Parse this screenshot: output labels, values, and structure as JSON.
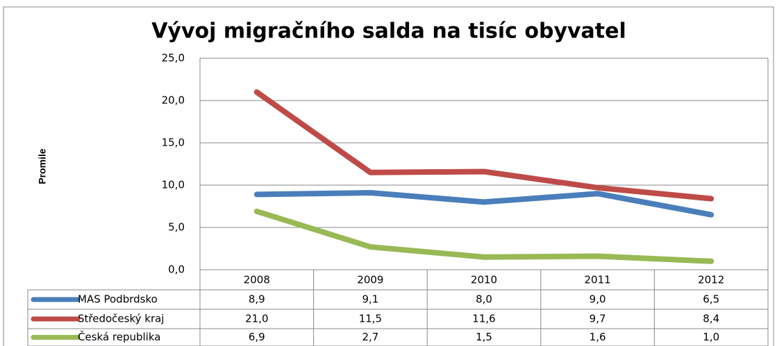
{
  "chart_data": {
    "type": "line",
    "title": "Vývoj migračního salda na tisíc obyvatel",
    "y_label": "Promile",
    "categories": [
      "2008",
      "2009",
      "2010",
      "2011",
      "2012"
    ],
    "series": [
      {
        "name": "MAS Podbrdsko",
        "color": "#4a7ebb",
        "values": [
          8.9,
          9.1,
          8.0,
          9.0,
          6.5
        ],
        "value_labels": [
          "8,9",
          "9,1",
          "8,0",
          "9,0",
          "6,5"
        ]
      },
      {
        "name": "Středočeský kraj",
        "color": "#be4b48",
        "values": [
          21.0,
          11.5,
          11.6,
          9.7,
          8.4
        ],
        "value_labels": [
          "21,0",
          "11,5",
          "11,6",
          "9,7",
          "8,4"
        ]
      },
      {
        "name": "Česká republika",
        "color": "#98b954",
        "values": [
          6.9,
          2.7,
          1.5,
          1.6,
          1.0
        ],
        "value_labels": [
          "6,9",
          "2,7",
          "1,5",
          "1,6",
          "1,0"
        ]
      }
    ],
    "ylim": [
      0,
      25
    ],
    "yticks": [
      {
        "value": 0,
        "label": "0,0"
      },
      {
        "value": 5,
        "label": "5,0"
      },
      {
        "value": 10,
        "label": "10,0"
      },
      {
        "value": 15,
        "label": "15,0"
      },
      {
        "value": 20,
        "label": "20,0"
      },
      {
        "value": 25,
        "label": "25,0"
      }
    ],
    "grid": true
  }
}
